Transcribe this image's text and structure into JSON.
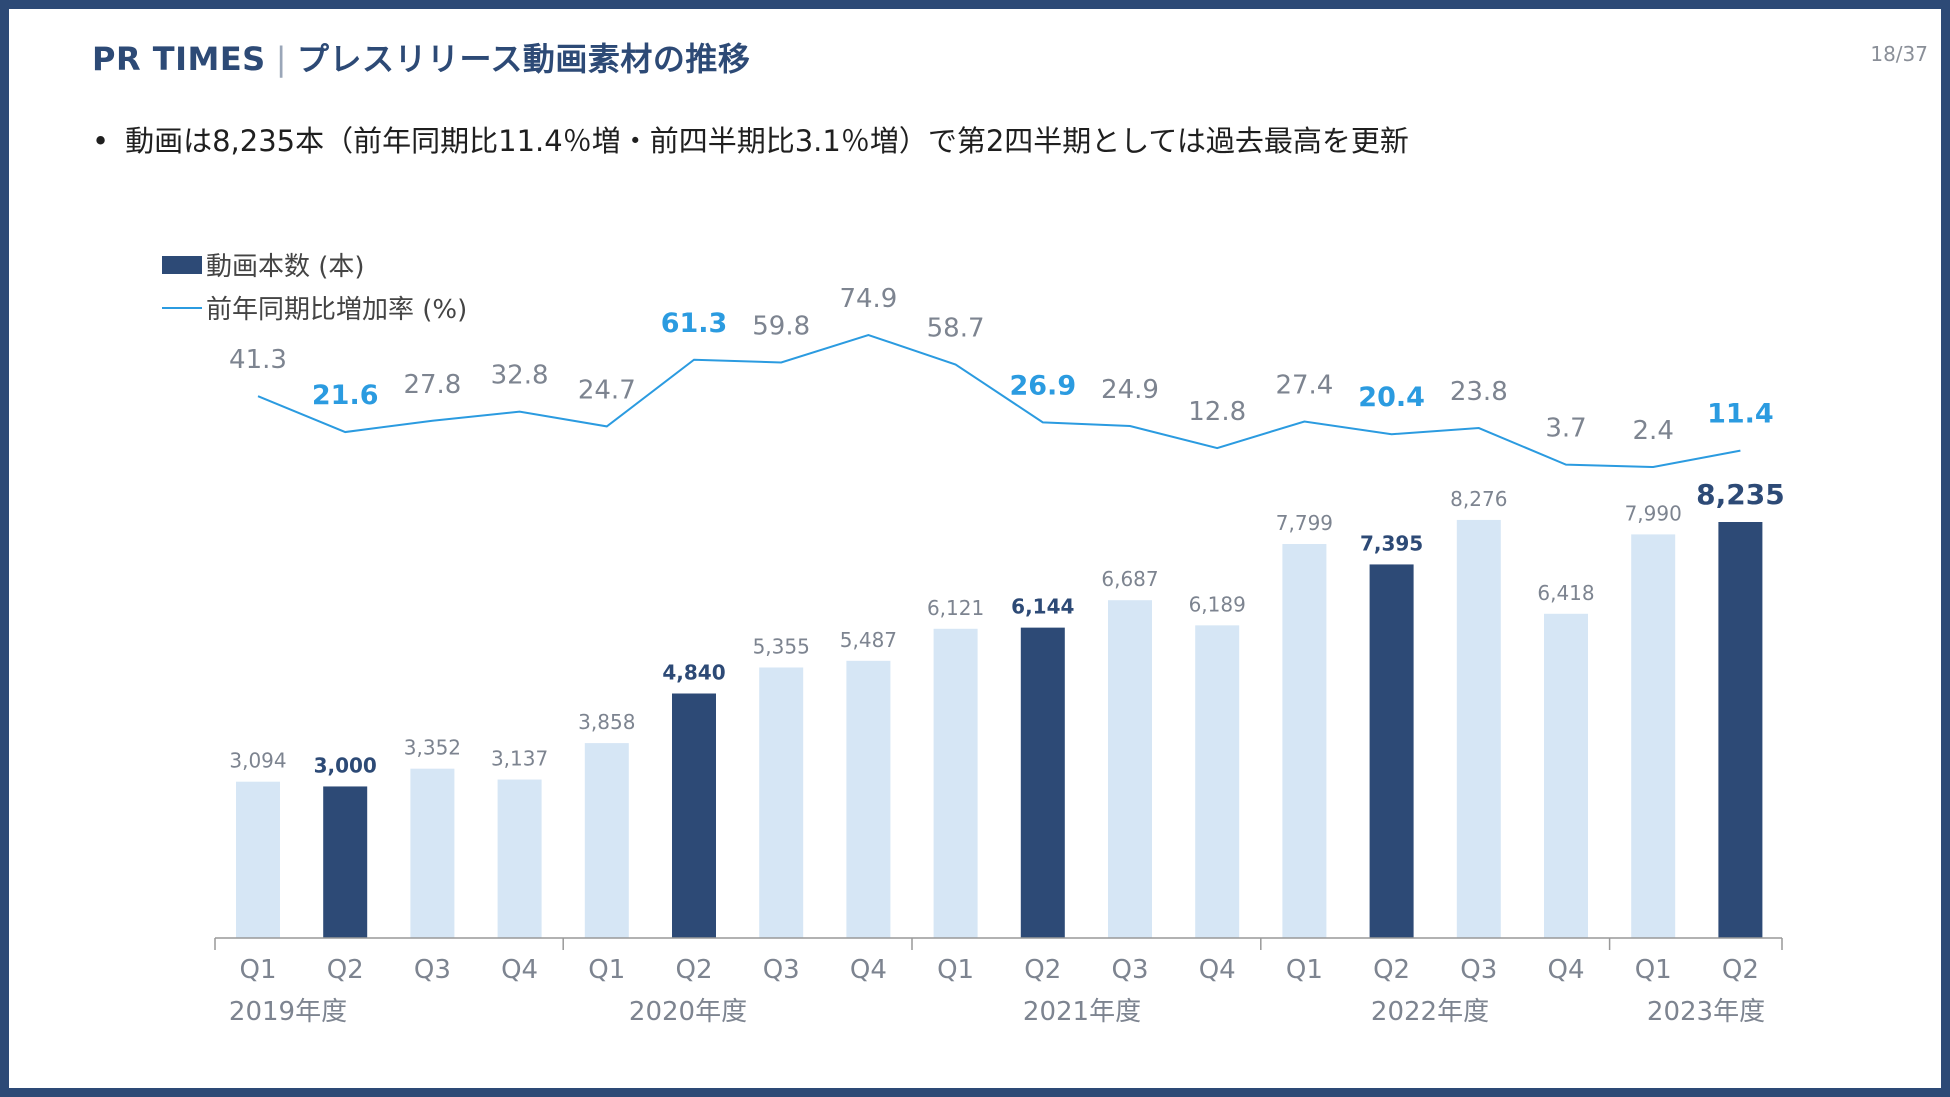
{
  "slide": {
    "title_brand": "PR TIMES",
    "title_separator": "|",
    "title_text": "プレスリリース動画素材の推移",
    "page_number": "18/37",
    "bullet": "動画は8,235本（前年同期比11.4％増・前四半期比3.1％増）で第2四半期としては過去最高を更新"
  },
  "colors": {
    "bar_dark": "#2d4a76",
    "bar_light": "#d6e6f5",
    "line": "#2b9be0",
    "label_gray": "#7d8490",
    "label_blue": "#2b9be0",
    "label_dark": "#2d4a76",
    "axis": "#999999"
  },
  "chart_data": {
    "type": "bar",
    "categories": [
      "Q1",
      "Q2",
      "Q3",
      "Q4",
      "Q1",
      "Q2",
      "Q3",
      "Q4",
      "Q1",
      "Q2",
      "Q3",
      "Q4",
      "Q1",
      "Q2",
      "Q3",
      "Q4",
      "Q1",
      "Q2"
    ],
    "groups": [
      {
        "label": "2019年度",
        "quarters": 4
      },
      {
        "label": "2020年度",
        "quarters": 4
      },
      {
        "label": "2021年度",
        "quarters": 4
      },
      {
        "label": "2022年度",
        "quarters": 4
      },
      {
        "label": "2023年度",
        "quarters": 2
      }
    ],
    "series": [
      {
        "name": "動画本数 (本)",
        "type": "bar",
        "values": [
          3094,
          3000,
          3352,
          3137,
          3858,
          4840,
          5355,
          5487,
          6121,
          6144,
          6687,
          6189,
          7799,
          7395,
          8276,
          6418,
          7990,
          8235
        ],
        "labels": [
          "3,094",
          "3,000",
          "3,352",
          "3,137",
          "3,858",
          "4,840",
          "5,355",
          "5,487",
          "6,121",
          "6,144",
          "6,687",
          "6,189",
          "7,799",
          "7,395",
          "8,276",
          "6,418",
          "7,990",
          "8,235"
        ],
        "highlight": [
          false,
          true,
          false,
          false,
          false,
          true,
          false,
          false,
          false,
          true,
          false,
          false,
          false,
          true,
          false,
          false,
          false,
          true
        ]
      },
      {
        "name": "前年同期比増加率 (%)",
        "type": "line",
        "values": [
          41.3,
          21.6,
          27.8,
          32.8,
          24.7,
          61.3,
          59.8,
          74.9,
          58.7,
          26.9,
          24.9,
          12.8,
          27.4,
          20.4,
          23.8,
          3.7,
          2.4,
          11.4
        ],
        "labels": [
          "41.3",
          "21.6",
          "27.8",
          "32.8",
          "24.7",
          "61.3",
          "59.8",
          "74.9",
          "58.7",
          "26.9",
          "24.9",
          "12.8",
          "27.4",
          "20.4",
          "23.8",
          "3.7",
          "2.4",
          "11.4"
        ],
        "highlight": [
          false,
          true,
          false,
          false,
          false,
          true,
          false,
          false,
          false,
          true,
          false,
          false,
          false,
          true,
          false,
          false,
          false,
          true
        ]
      }
    ],
    "bar_ylim": [
      0,
      8400
    ],
    "line_ylim": [
      0,
      80
    ],
    "legend_position": "top-left",
    "grid": false
  }
}
